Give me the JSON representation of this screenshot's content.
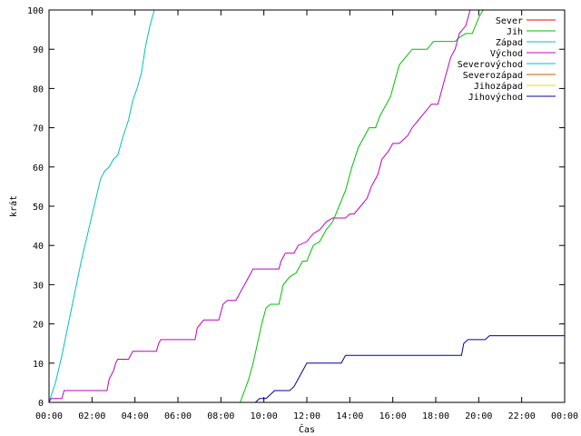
{
  "chart_data": {
    "type": "line",
    "xlabel": "Čas",
    "ylabel": "krát",
    "xlim": [
      0,
      24
    ],
    "ylim": [
      0,
      100
    ],
    "x_ticks": [
      {
        "value": 0,
        "label": "00:00"
      },
      {
        "value": 2,
        "label": "02:00"
      },
      {
        "value": 4,
        "label": "04:00"
      },
      {
        "value": 6,
        "label": "06:00"
      },
      {
        "value": 8,
        "label": "08:00"
      },
      {
        "value": 10,
        "label": "10:00"
      },
      {
        "value": 12,
        "label": "12:00"
      },
      {
        "value": 14,
        "label": "14:00"
      },
      {
        "value": 16,
        "label": "16:00"
      },
      {
        "value": 18,
        "label": "18:00"
      },
      {
        "value": 20,
        "label": "20:00"
      },
      {
        "value": 22,
        "label": "22:00"
      },
      {
        "value": 24,
        "label": "00:00"
      }
    ],
    "y_ticks": [
      0,
      10,
      20,
      30,
      40,
      50,
      60,
      70,
      80,
      90,
      100
    ],
    "grid": false,
    "legend_position": "top-right",
    "series": [
      {
        "name": "Sever",
        "color": "#ff0000",
        "points": []
      },
      {
        "name": "Jih",
        "color": "#00c000",
        "points": [
          [
            8.9,
            0
          ],
          [
            9.1,
            3
          ],
          [
            9.3,
            6
          ],
          [
            9.5,
            10
          ],
          [
            9.7,
            15
          ],
          [
            9.9,
            20
          ],
          [
            10.1,
            24
          ],
          [
            10.3,
            25
          ],
          [
            10.7,
            25
          ],
          [
            10.9,
            30
          ],
          [
            11.2,
            32
          ],
          [
            11.5,
            33
          ],
          [
            11.8,
            36
          ],
          [
            12.0,
            36
          ],
          [
            12.3,
            40
          ],
          [
            12.6,
            41
          ],
          [
            12.9,
            44
          ],
          [
            13.2,
            46
          ],
          [
            13.5,
            50
          ],
          [
            13.8,
            54
          ],
          [
            14.1,
            60
          ],
          [
            14.4,
            65
          ],
          [
            14.7,
            68
          ],
          [
            14.9,
            70
          ],
          [
            15.2,
            70
          ],
          [
            15.4,
            73
          ],
          [
            15.7,
            76
          ],
          [
            15.9,
            78
          ],
          [
            16.1,
            82
          ],
          [
            16.3,
            86
          ],
          [
            16.6,
            88
          ],
          [
            16.9,
            90
          ],
          [
            17.1,
            90
          ],
          [
            17.6,
            90
          ],
          [
            17.9,
            92
          ],
          [
            18.2,
            92
          ],
          [
            18.9,
            92
          ],
          [
            19.1,
            93
          ],
          [
            19.4,
            94
          ],
          [
            19.7,
            94
          ],
          [
            20.0,
            98
          ],
          [
            20.2,
            100
          ]
        ]
      },
      {
        "name": "Západ",
        "color": "#00c0c0",
        "points": [
          [
            0,
            0
          ],
          [
            0.3,
            5
          ],
          [
            0.6,
            12
          ],
          [
            0.9,
            20
          ],
          [
            1.2,
            28
          ],
          [
            1.5,
            36
          ],
          [
            1.8,
            43
          ],
          [
            2.1,
            50
          ],
          [
            2.4,
            57
          ],
          [
            2.6,
            59
          ],
          [
            2.8,
            60
          ],
          [
            3.0,
            62
          ],
          [
            3.2,
            63
          ],
          [
            3.4,
            67
          ],
          [
            3.7,
            72
          ],
          [
            3.9,
            77
          ],
          [
            4.1,
            80
          ],
          [
            4.3,
            84
          ],
          [
            4.5,
            91
          ],
          [
            4.7,
            96
          ],
          [
            4.9,
            100
          ]
        ]
      },
      {
        "name": "Východ",
        "color": "#c000c0",
        "points": [
          [
            0,
            0
          ],
          [
            0.1,
            1
          ],
          [
            0.6,
            1
          ],
          [
            0.7,
            3
          ],
          [
            1.2,
            3
          ],
          [
            2.7,
            3
          ],
          [
            2.8,
            6
          ],
          [
            3.0,
            8
          ],
          [
            3.1,
            10
          ],
          [
            3.2,
            11
          ],
          [
            3.7,
            11
          ],
          [
            3.9,
            13
          ],
          [
            4.2,
            13
          ],
          [
            5.0,
            13
          ],
          [
            5.1,
            15
          ],
          [
            5.2,
            16
          ],
          [
            6.0,
            16
          ],
          [
            6.8,
            16
          ],
          [
            6.9,
            19
          ],
          [
            7.2,
            21
          ],
          [
            7.9,
            21
          ],
          [
            8.1,
            25
          ],
          [
            8.3,
            26
          ],
          [
            8.7,
            26
          ],
          [
            8.9,
            28
          ],
          [
            9.1,
            30
          ],
          [
            9.3,
            32
          ],
          [
            9.5,
            34
          ],
          [
            9.9,
            34
          ],
          [
            10.7,
            34
          ],
          [
            10.8,
            36
          ],
          [
            11.0,
            38
          ],
          [
            11.4,
            38
          ],
          [
            11.6,
            40
          ],
          [
            12.0,
            41
          ],
          [
            12.3,
            43
          ],
          [
            12.6,
            44
          ],
          [
            12.9,
            46
          ],
          [
            13.2,
            47
          ],
          [
            13.8,
            47
          ],
          [
            14.0,
            48
          ],
          [
            14.2,
            48
          ],
          [
            14.5,
            50
          ],
          [
            14.8,
            52
          ],
          [
            15.0,
            55
          ],
          [
            15.3,
            58
          ],
          [
            15.5,
            62
          ],
          [
            15.8,
            64
          ],
          [
            16.0,
            66
          ],
          [
            16.3,
            66
          ],
          [
            16.7,
            68
          ],
          [
            16.9,
            70
          ],
          [
            17.2,
            72
          ],
          [
            17.5,
            74
          ],
          [
            17.8,
            76
          ],
          [
            18.1,
            76
          ],
          [
            18.3,
            80
          ],
          [
            18.5,
            84
          ],
          [
            18.7,
            88
          ],
          [
            18.9,
            90
          ],
          [
            19.1,
            94
          ],
          [
            19.4,
            96
          ],
          [
            19.6,
            100
          ]
        ]
      },
      {
        "name": "Severovýchod",
        "color": "#00c0c0",
        "points": []
      },
      {
        "name": "Severozápad",
        "color": "#c06000",
        "points": []
      },
      {
        "name": "Jihozápad",
        "color": "#e0e000",
        "points": []
      },
      {
        "name": "Jihovýchod",
        "color": "#0000a0",
        "points": [
          [
            9.6,
            0
          ],
          [
            9.8,
            1
          ],
          [
            10.1,
            1
          ],
          [
            10.3,
            2
          ],
          [
            10.5,
            3
          ],
          [
            11.2,
            3
          ],
          [
            11.4,
            4
          ],
          [
            11.6,
            6
          ],
          [
            11.8,
            8
          ],
          [
            12.0,
            10
          ],
          [
            13.2,
            10
          ],
          [
            13.6,
            10
          ],
          [
            13.8,
            12
          ],
          [
            16.0,
            12
          ],
          [
            18.0,
            12
          ],
          [
            19.2,
            12
          ],
          [
            19.3,
            15
          ],
          [
            19.5,
            16
          ],
          [
            20.3,
            16
          ],
          [
            20.5,
            17
          ],
          [
            22.0,
            17
          ],
          [
            24.0,
            17
          ]
        ]
      }
    ]
  }
}
